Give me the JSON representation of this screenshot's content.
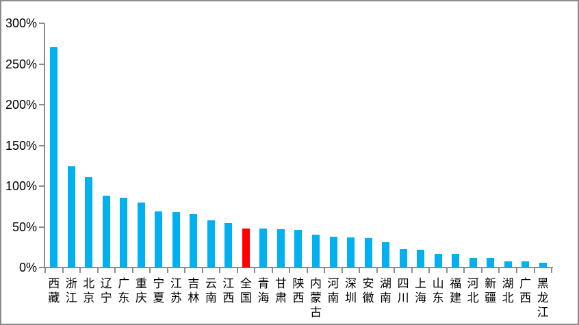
{
  "chart_data": {
    "type": "bar",
    "title": "",
    "xlabel": "",
    "ylabel": "",
    "categories": [
      "西藏",
      "浙江",
      "北京",
      "辽宁",
      "广东",
      "重庆",
      "宁夏",
      "江苏",
      "吉林",
      "云南",
      "江西",
      "全国",
      "青海",
      "甘肃",
      "陕西",
      "内蒙古",
      "河南",
      "深圳",
      "安徽",
      "湖南",
      "四川",
      "上海",
      "山东",
      "福建",
      "河北",
      "新疆",
      "湖北",
      "广西",
      "黑龙江"
    ],
    "values": [
      271,
      124,
      111,
      88,
      86,
      80,
      69,
      68,
      66,
      58,
      55,
      48,
      48,
      47,
      46,
      40,
      38,
      37,
      36,
      31,
      23,
      22,
      17,
      17,
      12,
      12,
      8,
      8,
      6
    ],
    "unit": "%",
    "ylim": [
      0,
      300
    ],
    "ytick_step": 50,
    "ytick_labels": [
      "0%",
      "50%",
      "100%",
      "150%",
      "200%",
      "250%",
      "300%"
    ],
    "grid": false,
    "legend": false,
    "highlight_category": "全国",
    "colors": {
      "bar": "#00B0F0",
      "highlight": "#FF0000",
      "axis": "#8C8C8C",
      "text": "#000000",
      "frame_border": "#8C8C8C",
      "background": "#FFFFFF"
    }
  }
}
